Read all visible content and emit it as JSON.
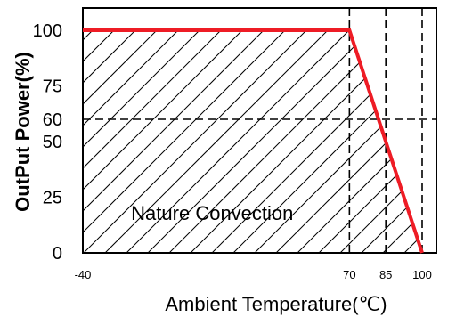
{
  "chart_data": {
    "type": "line",
    "title": "",
    "xlabel": "Ambient Temperature(℃)",
    "ylabel": "OutPut Power(%)",
    "x_ticks": [
      "-40",
      "70",
      "85",
      "100"
    ],
    "y_ticks": [
      "0",
      "25",
      "50",
      "60",
      "75",
      "100"
    ],
    "xlim": [
      -40,
      100
    ],
    "ylim": [
      0,
      100
    ],
    "grid": false,
    "reference_lines": {
      "vertical_x": [
        70,
        85,
        100
      ],
      "horizontal_y": [
        60
      ]
    },
    "series": [
      {
        "x": [
          -40,
          70,
          100
        ],
        "y": [
          100,
          100,
          0
        ],
        "color": "#ee1c25"
      }
    ],
    "annotations": [
      {
        "text": "Nature Convection",
        "x": 20,
        "y": 18
      }
    ],
    "colors": {
      "curve": "#ee1c25",
      "axis": "#000000",
      "hatch": "#000000"
    }
  }
}
